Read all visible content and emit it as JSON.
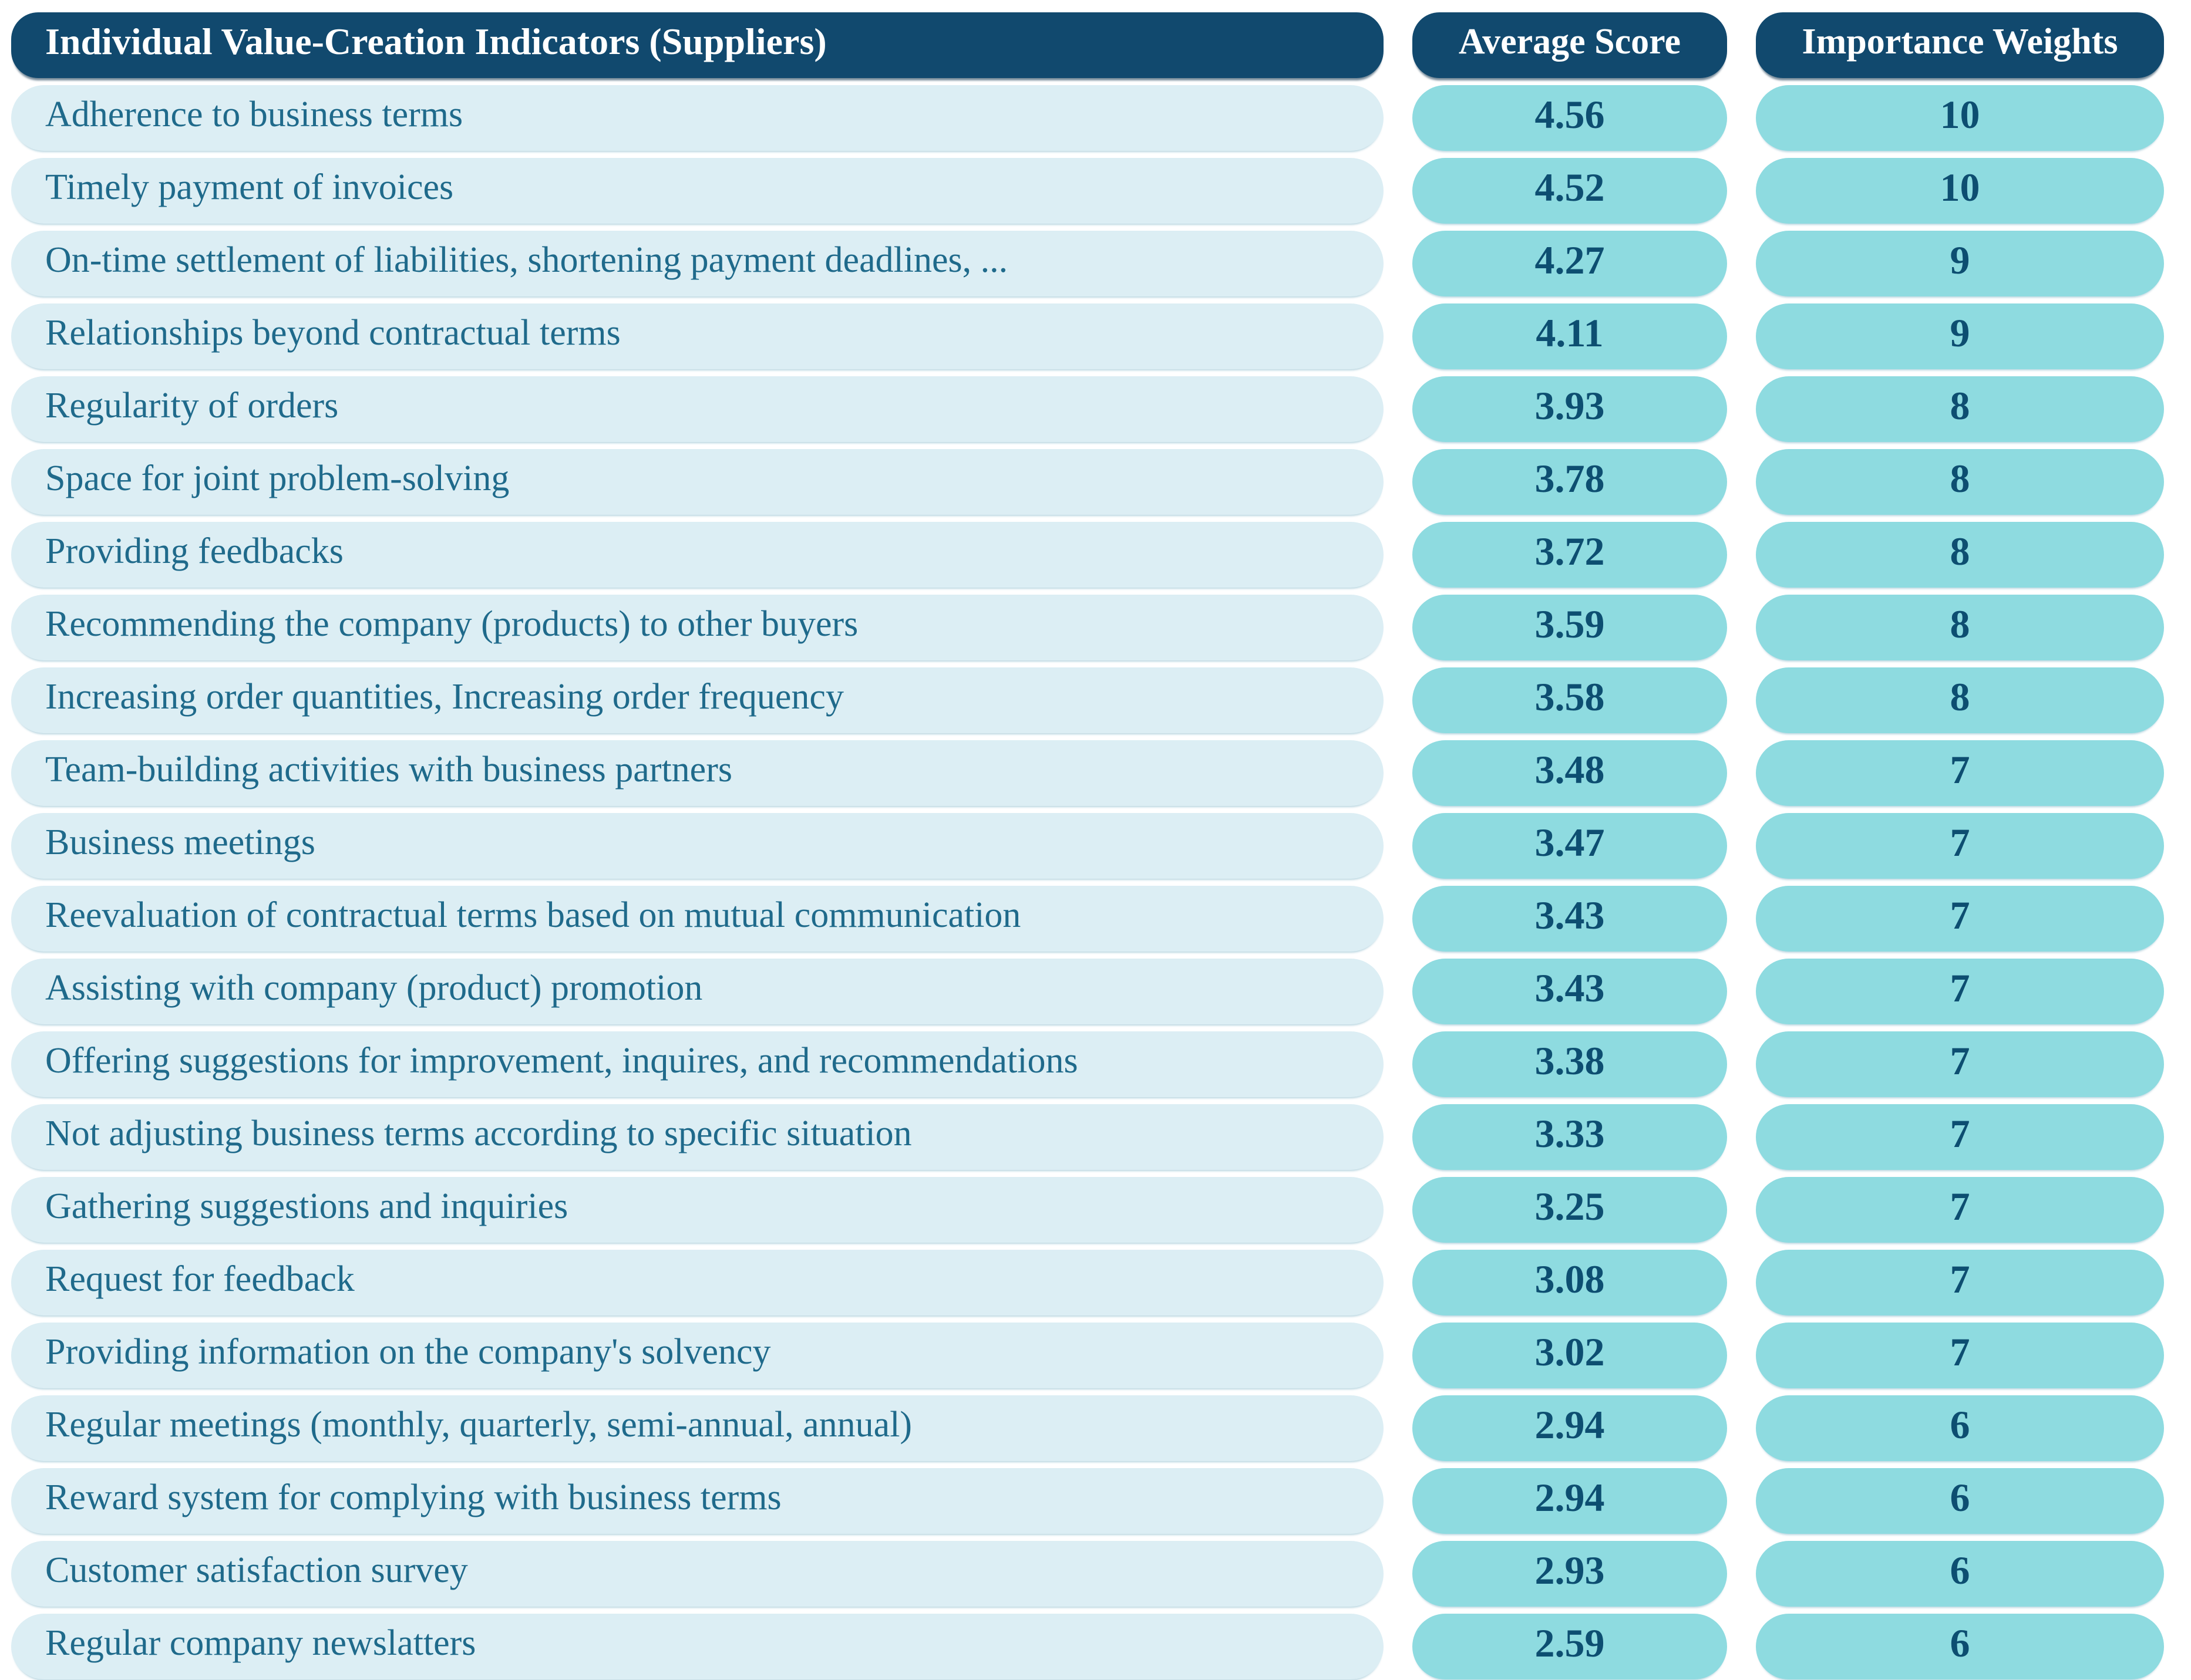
{
  "table": {
    "columns": {
      "indicator": "Individual Value-Creation Indicators (Suppliers)",
      "score": "Average Score",
      "weight": "Importance Weights"
    },
    "rows": [
      {
        "indicator": "Adherence to business terms",
        "score": "4.56",
        "weight": "10"
      },
      {
        "indicator": "Timely payment of invoices",
        "score": "4.52",
        "weight": "10"
      },
      {
        "indicator": "On-time settlement of liabilities, shortening payment deadlines, ...",
        "score": "4.27",
        "weight": "9"
      },
      {
        "indicator": "Relationships beyond contractual terms",
        "score": "4.11",
        "weight": "9"
      },
      {
        "indicator": "Regularity of orders",
        "score": "3.93",
        "weight": "8"
      },
      {
        "indicator": "Space for joint problem-solving",
        "score": "3.78",
        "weight": "8"
      },
      {
        "indicator": "Providing feedbacks",
        "score": "3.72",
        "weight": "8"
      },
      {
        "indicator": "Recommending the company (products) to other buyers",
        "score": "3.59",
        "weight": "8"
      },
      {
        "indicator": "Increasing order quantities, Increasing order frequency",
        "score": "3.58",
        "weight": "8"
      },
      {
        "indicator": "Team-building activities with business partners",
        "score": "3.48",
        "weight": "7"
      },
      {
        "indicator": "Business meetings",
        "score": "3.47",
        "weight": "7"
      },
      {
        "indicator": "Reevaluation of contractual terms based on mutual communication",
        "score": "3.43",
        "weight": "7"
      },
      {
        "indicator": "Assisting with company (product) promotion",
        "score": "3.43",
        "weight": "7"
      },
      {
        "indicator": "Offering suggestions for improvement, inquires, and recommendations",
        "score": "3.38",
        "weight": "7"
      },
      {
        "indicator": "Not adjusting business terms according to specific situation",
        "score": "3.33",
        "weight": "7"
      },
      {
        "indicator": "Gathering suggestions and inquiries",
        "score": "3.25",
        "weight": "7"
      },
      {
        "indicator": "Request for feedback",
        "score": "3.08",
        "weight": "7"
      },
      {
        "indicator": "Providing information on the company's solvency",
        "score": "3.02",
        "weight": "7"
      },
      {
        "indicator": "Regular meetings (monthly, quarterly, semi-annual, annual)",
        "score": "2.94",
        "weight": "6"
      },
      {
        "indicator": "Reward system for complying with business terms",
        "score": "2.94",
        "weight": "6"
      },
      {
        "indicator": "Customer satisfaction survey",
        "score": "2.93",
        "weight": "6"
      },
      {
        "indicator": "Regular company newslatters",
        "score": "2.59",
        "weight": "6"
      }
    ]
  },
  "colors": {
    "header_bg": "#11496e",
    "header_text": "#ffffff",
    "row_bg": "#dceef4",
    "row_text": "#1f6a8b",
    "value_bg": "#8edbe0",
    "value_text": "#0d4e71",
    "page_bg": "#ffffff"
  },
  "chart_data": {
    "type": "table",
    "title": "Individual Value-Creation Indicators (Suppliers)",
    "columns": [
      "Individual Value-Creation Indicators (Suppliers)",
      "Average Score",
      "Importance Weights"
    ],
    "rows": [
      [
        "Adherence to business terms",
        4.56,
        10
      ],
      [
        "Timely payment of invoices",
        4.52,
        10
      ],
      [
        "On-time settlement of liabilities, shortening payment deadlines, ...",
        4.27,
        9
      ],
      [
        "Relationships beyond contractual terms",
        4.11,
        9
      ],
      [
        "Regularity of orders",
        3.93,
        8
      ],
      [
        "Space for joint problem-solving",
        3.78,
        8
      ],
      [
        "Providing feedbacks",
        3.72,
        8
      ],
      [
        "Recommending the company (products) to other buyers",
        3.59,
        8
      ],
      [
        "Increasing order quantities, Increasing order frequency",
        3.58,
        8
      ],
      [
        "Team-building activities with business partners",
        3.48,
        7
      ],
      [
        "Business meetings",
        3.47,
        7
      ],
      [
        "Reevaluation of contractual terms based on mutual communication",
        3.43,
        7
      ],
      [
        "Assisting with company (product) promotion",
        3.43,
        7
      ],
      [
        "Offering suggestions for improvement, inquires, and recommendations",
        3.38,
        7
      ],
      [
        "Not adjusting business terms according to specific situation",
        3.33,
        7
      ],
      [
        "Gathering suggestions and inquiries",
        3.25,
        7
      ],
      [
        "Request for feedback",
        3.08,
        7
      ],
      [
        "Providing information on the company's solvency",
        3.02,
        7
      ],
      [
        "Regular meetings (monthly, quarterly, semi-annual, annual)",
        2.94,
        6
      ],
      [
        "Reward system for complying with business terms",
        2.94,
        6
      ],
      [
        "Customer satisfaction survey",
        2.93,
        6
      ],
      [
        "Regular company newslatters",
        2.59,
        6
      ]
    ]
  }
}
